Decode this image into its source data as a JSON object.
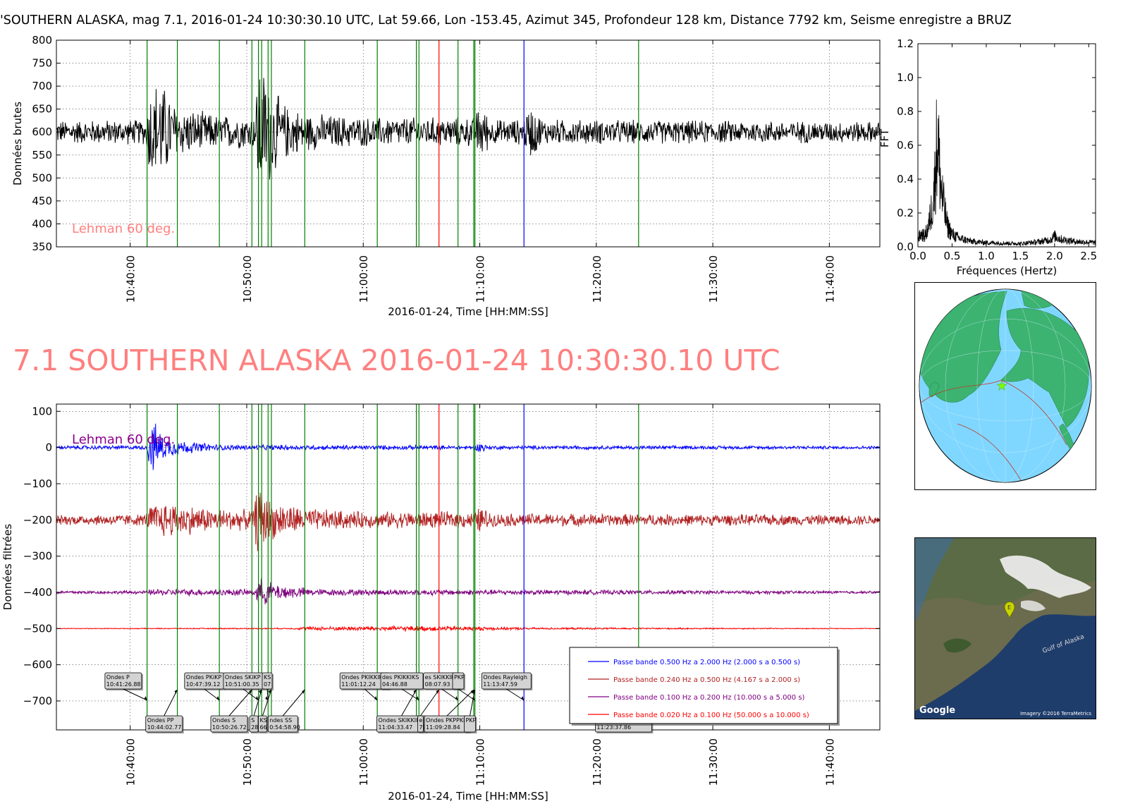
{
  "header": {
    "info_line": "'SOUTHERN ALASKA, mag 7.1, 2016-01-24 10:30:30.10 UTC, Lat 59.66, Lon -153.45, Azimut 345, Profondeur 128 km, Distance  7792 km, Seisme enregistre a BRUZ",
    "big_title": "7.1 SOUTHERN ALASKA 2016-01-24 10:30:30.10 UTC"
  },
  "chart_data": [
    {
      "type": "line",
      "id": "raw",
      "ylabel": "Données brutes",
      "xlabel": "2016-01-24, Time [HH:MM:SS]",
      "ylim": [
        350,
        800
      ],
      "yticks": [
        350,
        400,
        450,
        500,
        550,
        600,
        650,
        700,
        750,
        800
      ],
      "xlim": [
        "10:33:40",
        "11:44:20"
      ],
      "xticks": [
        "10:40:00",
        "10:50:00",
        "11:00:00",
        "11:10:00",
        "11:20:00",
        "11:30:00",
        "11:40:00"
      ],
      "grid": true,
      "annotation": "Lehman 60 deg.",
      "series": [
        {
          "color": "#000000",
          "baseline": 600,
          "envelope": [
            {
              "t": "10:33:40",
              "amp": 28
            },
            {
              "t": "10:41:20",
              "amp": 30
            },
            {
              "t": "10:41:40",
              "amp": 110
            },
            {
              "t": "10:42:30",
              "amp": 130
            },
            {
              "t": "10:44:00",
              "amp": 60
            },
            {
              "t": "10:47:40",
              "amp": 40
            },
            {
              "t": "10:50:40",
              "amp": 40
            },
            {
              "t": "10:51:00",
              "amp": 170
            },
            {
              "t": "10:51:40",
              "amp": 140
            },
            {
              "t": "10:53:00",
              "amp": 70
            },
            {
              "t": "10:55:00",
              "amp": 45
            },
            {
              "t": "11:00:00",
              "amp": 35
            },
            {
              "t": "11:09:30",
              "amp": 35
            },
            {
              "t": "11:10:00",
              "amp": 70
            },
            {
              "t": "11:11:00",
              "amp": 30
            },
            {
              "t": "11:13:40",
              "amp": 30
            },
            {
              "t": "11:14:20",
              "amp": 65
            },
            {
              "t": "11:15:30",
              "amp": 30
            },
            {
              "t": "11:44:20",
              "amp": 25
            }
          ]
        }
      ]
    },
    {
      "type": "line",
      "id": "spectrum",
      "ylabel": "FFT",
      "xlabel": "Fréquences (Hertz)",
      "xlim": [
        0.0,
        2.6
      ],
      "ylim": [
        0.0,
        1.2
      ],
      "xticks": [
        "0.0",
        "0.5",
        "1.0",
        "1.5",
        "2.0",
        "2.5"
      ],
      "yticks": [
        "0.0",
        "0.2",
        "0.4",
        "0.6",
        "0.8",
        "1.0",
        "1.2"
      ],
      "series": [
        {
          "color": "#000000",
          "points": [
            [
              0.0,
              0.08
            ],
            [
              0.05,
              0.12
            ],
            [
              0.1,
              0.1
            ],
            [
              0.15,
              0.18
            ],
            [
              0.2,
              0.35
            ],
            [
              0.24,
              0.55
            ],
            [
              0.27,
              0.9
            ],
            [
              0.29,
              1.03
            ],
            [
              0.31,
              0.8
            ],
            [
              0.34,
              0.55
            ],
            [
              0.38,
              0.38
            ],
            [
              0.43,
              0.2
            ],
            [
              0.5,
              0.12
            ],
            [
              0.6,
              0.08
            ],
            [
              0.8,
              0.05
            ],
            [
              1.0,
              0.04
            ],
            [
              1.5,
              0.03
            ],
            [
              1.8,
              0.05
            ],
            [
              1.95,
              0.07
            ],
            [
              2.0,
              0.1
            ],
            [
              2.1,
              0.07
            ],
            [
              2.3,
              0.05
            ],
            [
              2.6,
              0.04
            ]
          ]
        }
      ]
    },
    {
      "type": "line",
      "id": "filtered",
      "ylabel": "Données filtrées",
      "xlabel": "2016-01-24, Time [HH:MM:SS]",
      "ylim": [
        -780,
        120
      ],
      "yticks": [
        100,
        0,
        -100,
        -200,
        -300,
        -400,
        -500,
        -600,
        -700
      ],
      "ytick_labels": [
        "100",
        "0",
        "−100",
        "−200",
        "−300",
        "−400",
        "−500",
        "−600",
        "−700"
      ],
      "xlim": [
        "10:33:40",
        "11:44:20"
      ],
      "xticks": [
        "10:40:00",
        "10:50:00",
        "11:00:00",
        "11:10:00",
        "11:20:00",
        "11:30:00",
        "11:40:00"
      ],
      "grid": true,
      "annotation": "Lehman 60 deg.",
      "series": [
        {
          "name": "Passe bande 0.500 Hz a 2.000 Hz (2.000 s a 0.500 s)",
          "color": "#0000ff",
          "baseline": 0,
          "envelope": [
            {
              "t": "10:33:40",
              "amp": 6
            },
            {
              "t": "10:41:20",
              "amp": 6
            },
            {
              "t": "10:41:40",
              "amp": 60
            },
            {
              "t": "10:42:00",
              "amp": 80
            },
            {
              "t": "10:43:00",
              "amp": 30
            },
            {
              "t": "10:45:00",
              "amp": 18
            },
            {
              "t": "10:48:00",
              "amp": 8
            },
            {
              "t": "11:09:40",
              "amp": 6
            },
            {
              "t": "11:10:00",
              "amp": 22
            },
            {
              "t": "11:10:40",
              "amp": 6
            },
            {
              "t": "11:44:20",
              "amp": 5
            }
          ]
        },
        {
          "name": "Passe bande 0.240 Hz a 0.500 Hz (4.167 s a 2.000 s)",
          "color": "#b22222",
          "baseline": -200,
          "envelope": [
            {
              "t": "10:33:40",
              "amp": 15
            },
            {
              "t": "10:41:20",
              "amp": 18
            },
            {
              "t": "10:41:40",
              "amp": 45
            },
            {
              "t": "10:43:00",
              "amp": 55
            },
            {
              "t": "10:47:00",
              "amp": 35
            },
            {
              "t": "10:50:30",
              "amp": 30
            },
            {
              "t": "10:51:00",
              "amp": 110
            },
            {
              "t": "10:52:00",
              "amp": 60
            },
            {
              "t": "10:55:00",
              "amp": 35
            },
            {
              "t": "11:00:00",
              "amp": 25
            },
            {
              "t": "11:09:40",
              "amp": 25
            },
            {
              "t": "11:10:00",
              "amp": 45
            },
            {
              "t": "11:11:00",
              "amp": 20
            },
            {
              "t": "11:44:20",
              "amp": 15
            }
          ]
        },
        {
          "name": "Passe bande 0.100 Hz a 0.200 Hz (10.000 s a 5.000 s)",
          "color": "#800080",
          "baseline": -400,
          "envelope": [
            {
              "t": "10:33:40",
              "amp": 5
            },
            {
              "t": "10:41:20",
              "amp": 5
            },
            {
              "t": "10:42:00",
              "amp": 10
            },
            {
              "t": "10:50:40",
              "amp": 10
            },
            {
              "t": "10:51:00",
              "amp": 45
            },
            {
              "t": "10:52:30",
              "amp": 25
            },
            {
              "t": "10:56:00",
              "amp": 10
            },
            {
              "t": "11:44:20",
              "amp": 4
            }
          ]
        },
        {
          "name": "Passe bande 0.020 Hz a 0.100 Hz (50.000 s a 10.000 s)",
          "color": "#ff0000",
          "baseline": -500,
          "envelope": [
            {
              "t": "10:33:40",
              "amp": 1
            },
            {
              "t": "10:54:00",
              "amp": 2
            },
            {
              "t": "10:55:00",
              "amp": 6
            },
            {
              "t": "11:05:00",
              "amp": 8
            },
            {
              "t": "11:10:00",
              "amp": 6
            },
            {
              "t": "11:15:00",
              "amp": 3
            },
            {
              "t": "11:44:20",
              "amp": 1
            }
          ]
        }
      ],
      "legend": {
        "placement": "lower-right"
      }
    }
  ],
  "phase_lines": [
    {
      "t": "10:41:26.88",
      "color": "#008000"
    },
    {
      "t": "10:44:02.77",
      "color": "#008000"
    },
    {
      "t": "10:47:39.12",
      "color": "#008000"
    },
    {
      "t": "10:50:26.72",
      "color": "#008000"
    },
    {
      "t": "10:51:00.35",
      "color": "#008000"
    },
    {
      "t": "10:51:17.00",
      "color": "#008000"
    },
    {
      "t": "10:51:50.00",
      "color": "#008000"
    },
    {
      "t": "10:52:07.00",
      "color": "#008000"
    },
    {
      "t": "10:54:58.90",
      "color": "#008000"
    },
    {
      "t": "11:01:12.24",
      "color": "#008000"
    },
    {
      "t": "11:04:33.47",
      "color": "#008000"
    },
    {
      "t": "11:04:46.88",
      "color": "#008000"
    },
    {
      "t": "11:06:30.00",
      "color": "#ff0000"
    },
    {
      "t": "11:08:07.93",
      "color": "#008000"
    },
    {
      "t": "11:09:28.84",
      "color": "#008000"
    },
    {
      "t": "11:09:35.00",
      "color": "#008000"
    },
    {
      "t": "11:13:47.59",
      "color": "#0000ff"
    },
    {
      "t": "11:23:37.86",
      "color": "#008000"
    }
  ],
  "phase_labels": [
    {
      "row": "upper",
      "at": "10:37:50",
      "line1": "Ondes P",
      "line2": "10:41:26.88",
      "arrow_to": "10:41:26.88",
      "width": 52
    },
    {
      "row": "lower",
      "at": "10:41:20",
      "line1": "Ondes PP",
      "line2": "10:44:02.77",
      "arrow_to": "10:44:02.77",
      "width": 52
    },
    {
      "row": "upper",
      "at": "10:44:40",
      "line1": "Ondes PKiKP",
      "line2": "10:47:39.12",
      "arrow_to": "10:47:39.12",
      "width": 56
    },
    {
      "row": "upper",
      "at": "10:48:00",
      "line1": "Ondes SKiKP",
      "line2": "10:51:00.35",
      "arrow_to": "10:51:00.35",
      "width": 56
    },
    {
      "row": "upper",
      "at": "10:51:20",
      "line1": "KS",
      "line2": "07",
      "arrow_to": "10:51:50.00",
      "width": 14
    },
    {
      "row": "lower",
      "at": "10:46:55",
      "line1": "Ondes S",
      "line2": "10:50:26.72",
      "arrow_to": "10:50:26.72",
      "width": 52
    },
    {
      "row": "lower",
      "at": "10:50:15",
      "line1": "S",
      "line2": "28",
      "arrow_to": "10:51:17.00",
      "width": 12
    },
    {
      "row": "lower",
      "at": "10:51:00",
      "line1": "KS",
      "line2": "66",
      "arrow_to": "10:52:07.00",
      "width": 12
    },
    {
      "row": "lower",
      "at": "10:51:50",
      "line1": "ndes SS",
      "line2": "0:54:58.90",
      "arrow_to": "10:54:58.90",
      "width": 42
    },
    {
      "row": "upper",
      "at": "10:58:00",
      "line1": "Ondes PKIKKIKP",
      "line2": "11:01:12.24",
      "arrow_to": "11:01:12.24",
      "width": 70
    },
    {
      "row": "upper",
      "at": "11:01:30",
      "line1": "des PKIKKIKS",
      "line2": "04:46.88",
      "arrow_to": "11:04:46.88",
      "width": 60
    },
    {
      "row": "lower",
      "at": "11:01:10",
      "line1": "Ondes SKIKKIKP",
      "line2": "11:04:33.47",
      "arrow_to": "11:04:33.47",
      "width": 70
    },
    {
      "row": "lower",
      "at": "11:04:40",
      "line1": "e",
      "line2": "79",
      "arrow_to": "11:06:30.00",
      "width": 8
    },
    {
      "row": "upper",
      "at": "11:05:10",
      "line1": "es SKIKKIKS",
      "line2": "08:07.93",
      "arrow_to": "11:08:07.93",
      "width": 52
    },
    {
      "row": "upper",
      "at": "11:07:40",
      "line1": "PKP",
      "line2": "",
      "arrow_to": "11:09:35.00",
      "width": 16
    },
    {
      "row": "lower",
      "at": "11:05:15",
      "line1": "Ondes PKPPKP",
      "line2": "11:09:28.84",
      "arrow_to": "11:09:28.84",
      "width": 64
    },
    {
      "row": "lower",
      "at": "11:08:40",
      "line1": "PKP",
      "line2": "",
      "arrow_to": "11:09:35.00",
      "width": 16
    },
    {
      "row": "upper",
      "at": "11:10:10",
      "line1": "Ondes Rayleigh",
      "line2": "11:13:47.59",
      "arrow_to": "11:13:47.59",
      "width": 70
    },
    {
      "row": "lower",
      "at": "11:19:55",
      "line1": "",
      "line2": "11:23:37.86",
      "arrow_to": "11:23:37.86",
      "width": 80
    }
  ],
  "globe": {
    "ocean_color": "#7fd7ff",
    "land_color": "#3cb371",
    "epicenter_marker": "star-icon",
    "epicenter_color": "#7fff00"
  },
  "satellite_map": {
    "sea_label": "Gulf of Alaska",
    "brand": "Google",
    "credit": "Imagery ©2016 TerraMetrics",
    "marker_letter": "E",
    "marker_color": "#c8d400"
  }
}
